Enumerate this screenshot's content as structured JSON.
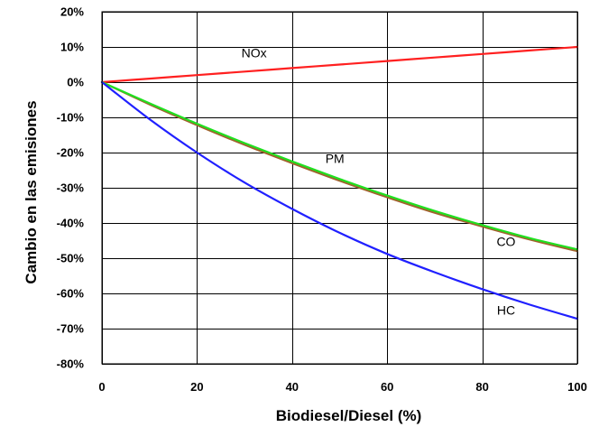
{
  "chart_data": {
    "type": "line",
    "title": "",
    "xlabel": "Biodiesel/Diesel (%)",
    "ylabel": "Cambio en las emisiones",
    "xlim": [
      0,
      100
    ],
    "ylim": [
      -80,
      20
    ],
    "grid": true,
    "x_ticks": [
      0,
      20,
      40,
      60,
      80,
      100
    ],
    "x_tick_labels": [
      "0",
      "20",
      "40",
      "60",
      "80",
      "100"
    ],
    "y_ticks": [
      20,
      10,
      0,
      -10,
      -20,
      -30,
      -40,
      -50,
      -60,
      -70,
      -80
    ],
    "y_tick_labels": [
      "20%",
      "10%",
      "0%",
      "-10%",
      "-20%",
      "-30%",
      "-40%",
      "-50%",
      "-60%",
      "-70%",
      "-80%"
    ],
    "series": [
      {
        "name": "NOx",
        "color": "#ff2020",
        "x": [
          0,
          10,
          20,
          30,
          40,
          50,
          60,
          70,
          80,
          90,
          100
        ],
        "y": [
          0,
          1,
          2,
          3,
          4,
          5,
          6,
          7,
          8,
          9,
          10
        ],
        "label_at": [
          32,
          7
        ]
      },
      {
        "name": "PM",
        "color": "#a0622d",
        "x": [
          0,
          10,
          20,
          30,
          40,
          50,
          60,
          70,
          80,
          90,
          100
        ],
        "y": [
          0,
          -6.3,
          -12.2,
          -17.8,
          -23.0,
          -28.0,
          -32.7,
          -37.1,
          -41.0,
          -44.7,
          -48.0
        ],
        "label_at": [
          49,
          -23
        ]
      },
      {
        "name": "CO",
        "color": "#20e020",
        "x": [
          0,
          10,
          20,
          30,
          40,
          50,
          60,
          70,
          80,
          90,
          100
        ],
        "y": [
          0,
          -6.0,
          -11.8,
          -17.3,
          -22.5,
          -27.5,
          -32.2,
          -36.6,
          -40.6,
          -44.3,
          -47.5
        ],
        "label_at": [
          85,
          -46.5
        ]
      },
      {
        "name": "HC",
        "color": "#2020ff",
        "x": [
          0,
          10,
          20,
          30,
          40,
          50,
          60,
          70,
          80,
          90,
          100
        ],
        "y": [
          0,
          -10.5,
          -20.0,
          -28.5,
          -36.0,
          -42.8,
          -48.8,
          -54.0,
          -58.8,
          -63.2,
          -67.2
        ],
        "label_at": [
          85,
          -66
        ]
      }
    ]
  }
}
